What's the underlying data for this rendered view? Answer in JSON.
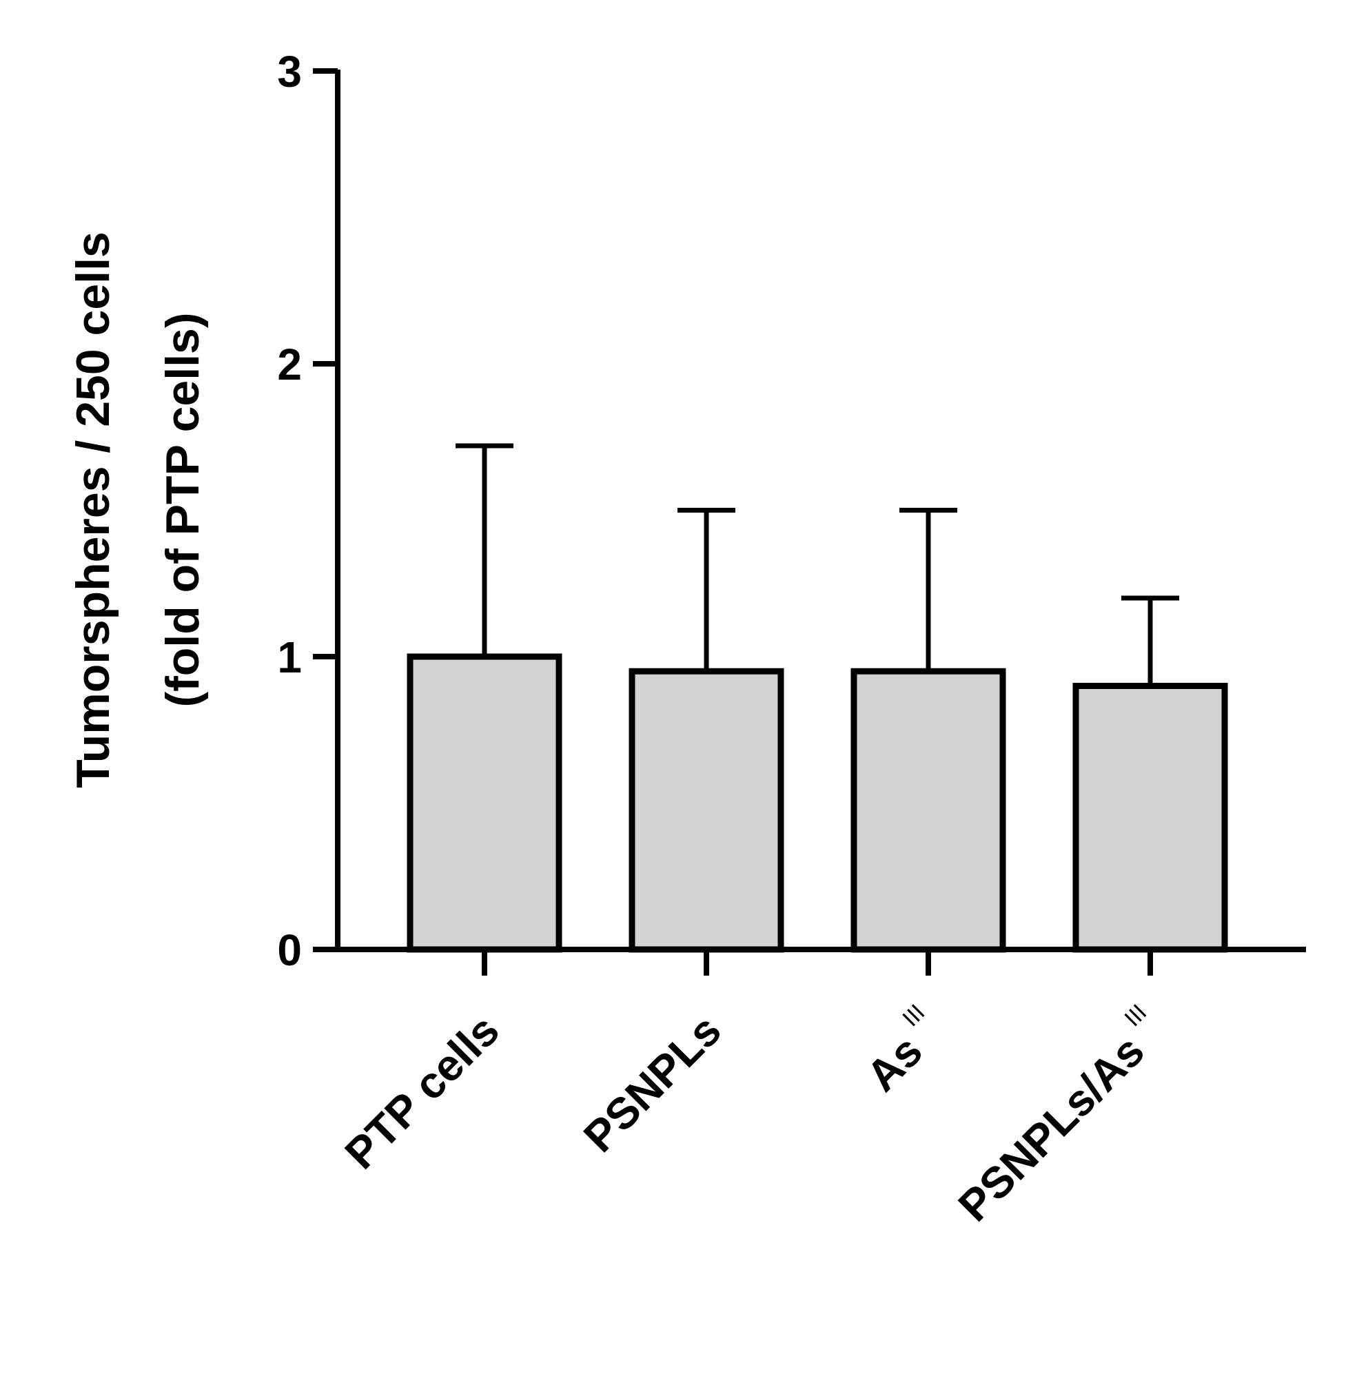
{
  "chart_data": {
    "type": "bar",
    "title": "",
    "ylabel_line1": "Tumorspheres / 250 cells",
    "ylabel_line2": "(fold of PTP cells)",
    "xlabel": "",
    "ylim": [
      0,
      3
    ],
    "yticks": [
      "0",
      "1",
      "2",
      "3"
    ],
    "categories": [
      {
        "base": "PTP cells",
        "sup": ""
      },
      {
        "base": "PSNPLs",
        "sup": ""
      },
      {
        "base": "As",
        "sup": "III"
      },
      {
        "base": "PSNPLs/As",
        "sup": "III"
      }
    ],
    "values": [
      1.0,
      0.95,
      0.95,
      0.9
    ],
    "error_upper": [
      1.72,
      1.5,
      1.5,
      1.2
    ],
    "bar_fill": "#d3d3d3",
    "bar_stroke": "#000000",
    "grid": false,
    "legend": "none"
  }
}
